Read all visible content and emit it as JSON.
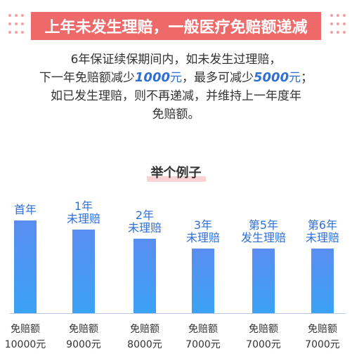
{
  "banner": {
    "title": "上年未发生理赔，一般医疗免赔额递减"
  },
  "intro": {
    "line1": "6年保证续保期间内，如未发生过理赔，",
    "line2_a": "下一年免赔额减少",
    "line2_amount1": "1000",
    "line2_unit1": "元",
    "line2_b": "，最多可减少",
    "line2_amount2": "5000",
    "line2_unit2": "元",
    "line2_c": "；",
    "line3": "如已发生理赔，则不再递减，并维持上一年度年",
    "line4": "免赔额。"
  },
  "example": {
    "title": "举个例子"
  },
  "colors": {
    "banner": "#ee6a6a",
    "bar_top": "#5a8ef0",
    "bar_bottom": "#3ba2f4",
    "accent_text": "#2f6fd6"
  },
  "chart_data": {
    "type": "bar",
    "categories": [
      {
        "line1": "首年",
        "line2": ""
      },
      {
        "line1": "1年",
        "line2": "未理赔"
      },
      {
        "line1": "2年",
        "line2": "未理赔"
      },
      {
        "line1": "3年",
        "line2": "未理赔"
      },
      {
        "line1": "第5年",
        "line2": "发生理赔"
      },
      {
        "line1": "第6年",
        "line2": "未理赔"
      }
    ],
    "values": [
      10000,
      9000,
      8000,
      7000,
      7000,
      7000
    ],
    "value_label_prefix": "免赔额",
    "value_labels": [
      "10000元",
      "9000元",
      "8000元",
      "7000元",
      "7000元",
      "7000元"
    ]
  }
}
